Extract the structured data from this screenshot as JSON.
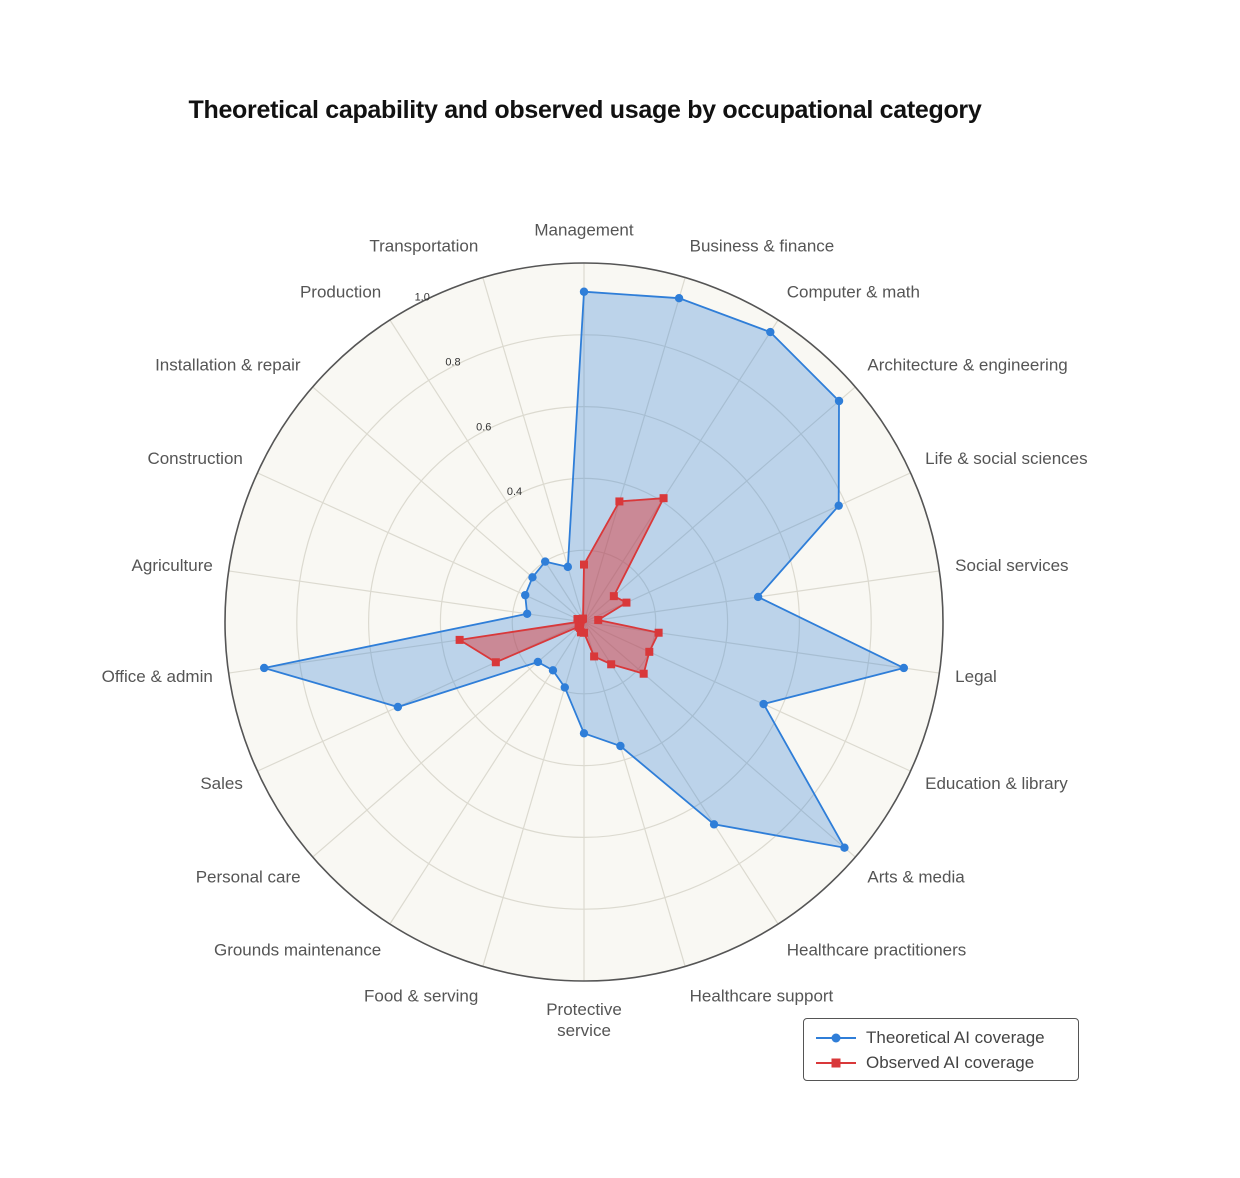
{
  "chart_data": {
    "type": "radar",
    "title": "Theoretical capability and observed usage by occupational category",
    "categories": [
      "Management",
      "Business & finance",
      "Computer & math",
      "Architecture & engineering",
      "Life & social sciences",
      "Social services",
      "Legal",
      "Education & library",
      "Arts & media",
      "Healthcare practitioners",
      "Healthcare support",
      "Protective service",
      "Food & serving",
      "Grounds maintenance",
      "Personal care",
      "Sales",
      "Office & admin",
      "Agriculture",
      "Construction",
      "Installation & repair",
      "Production",
      "Transportation"
    ],
    "radial_ticks": [
      "0.4",
      "0.6",
      "0.8",
      "1.0"
    ],
    "rlim": [
      0,
      1.0
    ],
    "grid": true,
    "legend_position": "bottom-right",
    "series": [
      {
        "name": "Theoretical AI coverage",
        "color": "#2f7ed8",
        "marker": "circle",
        "values": [
          0.92,
          0.94,
          0.96,
          0.94,
          0.78,
          0.49,
          0.9,
          0.55,
          0.96,
          0.67,
          0.36,
          0.31,
          0.19,
          0.16,
          0.17,
          0.57,
          0.9,
          0.16,
          0.18,
          0.19,
          0.2,
          0.16
        ]
      },
      {
        "name": "Observed AI coverage",
        "color": "#d9383a",
        "marker": "square",
        "values": [
          0.16,
          0.35,
          0.41,
          0.11,
          0.13,
          0.04,
          0.21,
          0.2,
          0.22,
          0.14,
          0.1,
          0.03,
          0.03,
          0.02,
          0.02,
          0.27,
          0.35,
          0.01,
          0.02,
          0.01,
          0.01,
          0.01
        ]
      }
    ]
  }
}
